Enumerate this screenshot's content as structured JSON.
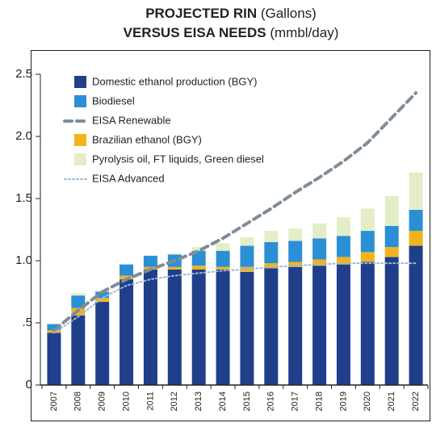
{
  "chart_data": {
    "type": "bar",
    "title": [
      {
        "bold": "PROJECTED RIN",
        "normal": "(Gallons)"
      },
      {
        "bold": "VERSUS EISA NEEDS",
        "normal": "(mmbl/day)"
      }
    ],
    "categories": [
      "2007",
      "2008",
      "2009",
      "2010",
      "2011",
      "2012",
      "2013",
      "2014",
      "2015",
      "2016",
      "2017",
      "2018",
      "2019",
      "2020",
      "2021",
      "2022"
    ],
    "series": [
      {
        "name": "Domestic ethanol production (BGY)",
        "kind": "bar",
        "color": "#1f3f8a",
        "values": [
          0.42,
          0.56,
          0.67,
          0.85,
          0.93,
          0.93,
          0.93,
          0.93,
          0.91,
          0.94,
          0.95,
          0.96,
          0.97,
          0.99,
          1.03,
          1.12
        ]
      },
      {
        "name": "Biodiesel",
        "kind": "bar",
        "color": "#2b8fd6",
        "values": [
          0.05,
          0.1,
          0.05,
          0.09,
          0.09,
          0.1,
          0.12,
          0.13,
          0.17,
          0.17,
          0.17,
          0.17,
          0.17,
          0.17,
          0.17,
          0.17
        ]
      },
      {
        "name": "EISA Renewable",
        "kind": "line",
        "style": "dashed",
        "color": "#7f8c99",
        "values": [
          0.44,
          0.6,
          0.75,
          0.85,
          0.93,
          1.0,
          1.08,
          1.18,
          1.3,
          1.42,
          1.55,
          1.67,
          1.8,
          1.95,
          2.15,
          2.35
        ]
      },
      {
        "name": "Brazilian ethanol (BGY)",
        "kind": "bar",
        "color": "#f0b41e",
        "values": [
          0.02,
          0.06,
          0.03,
          0.03,
          0.02,
          0.02,
          0.03,
          0.02,
          0.04,
          0.04,
          0.04,
          0.05,
          0.06,
          0.08,
          0.08,
          0.12
        ]
      },
      {
        "name": "Pyrolysis oil, FT liquids, Green diesel",
        "kind": "bar",
        "color": "#e3eec8",
        "values": [
          0,
          0.02,
          0.01,
          0,
          0,
          0.01,
          0.03,
          0.06,
          0.07,
          0.09,
          0.1,
          0.12,
          0.15,
          0.18,
          0.24,
          0.3
        ]
      },
      {
        "name": "EISA Advanced",
        "kind": "line",
        "style": "dotted",
        "color": "#9db8d8",
        "values": [
          0.42,
          0.55,
          0.7,
          0.8,
          0.85,
          0.88,
          0.9,
          0.92,
          0.93,
          0.95,
          0.96,
          0.97,
          0.98,
          0.98,
          0.98,
          0.98
        ]
      }
    ],
    "stack_order": [
      0,
      3,
      1,
      4
    ],
    "ylim": [
      0,
      2.5
    ],
    "yticks": [
      0,
      {
        "value": 0.5,
        "label": ".5"
      },
      {
        "value": 1,
        "label": "1.0"
      },
      1.5,
      {
        "value": 2,
        "label": "2.0"
      },
      2.5
    ],
    "legend": "upper left"
  }
}
